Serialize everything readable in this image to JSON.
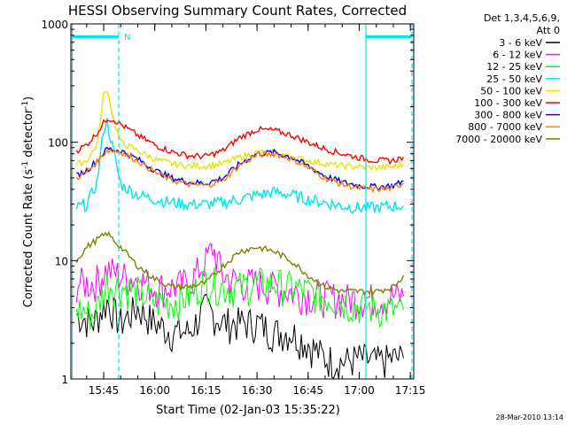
{
  "chart_data": {
    "type": "line",
    "title": "HESSI Observing Summary Count Rates, Corrected",
    "xlabel": "Start Time (02-Jan-03 15:35:22)",
    "ylabel_main": "Corrected Count Rate (s",
    "ylabel_sup1": "-1",
    "ylabel_mid": " detector",
    "ylabel_sup2": "-1",
    "ylabel_end": ")",
    "ylim": [
      1,
      1000
    ],
    "yscale": "log",
    "xlim": [
      "15:35",
      "17:15"
    ],
    "x_ticks": [
      "15:45",
      "16:00",
      "16:15",
      "16:30",
      "16:45",
      "17:00",
      "17:15"
    ],
    "y_ticks": [
      "1",
      "10",
      "100",
      "1000"
    ],
    "legend_header": [
      "Det 1,3,4,5,6,9,",
      "Att 0"
    ],
    "legend_position": "right",
    "marker_label": "N",
    "timestamp": "28-Mar-2010 13:14",
    "accent_color": "#00e5ee",
    "series": [
      {
        "name": "3 - 6 keV",
        "color": "#000000",
        "x": [
          "15:37",
          "15:42",
          "15:46",
          "15:50",
          "15:55",
          "16:00",
          "16:05",
          "16:10",
          "16:15",
          "16:20",
          "16:25",
          "16:30",
          "16:35",
          "16:40",
          "16:45",
          "16:50",
          "16:55",
          "17:00",
          "17:05",
          "17:10",
          "17:13"
        ],
        "values": [
          3.5,
          3,
          4.5,
          3,
          4,
          3,
          2.5,
          2.5,
          4,
          3,
          3,
          3,
          2.5,
          2.5,
          2,
          1.5,
          1.4,
          1.5,
          1.4,
          1.5,
          1.5
        ]
      },
      {
        "name": "6 - 12 keV",
        "color": "#ff00ff",
        "x": [
          "15:37",
          "15:42",
          "15:46",
          "15:50",
          "15:55",
          "16:00",
          "16:05",
          "16:10",
          "16:15",
          "16:17",
          "16:20",
          "16:25",
          "16:30",
          "16:35",
          "16:40",
          "16:45",
          "16:50",
          "16:55",
          "17:00",
          "17:05",
          "17:10",
          "17:13"
        ],
        "values": [
          6.5,
          6.5,
          8.5,
          7.5,
          7,
          6,
          6,
          6.5,
          10,
          13,
          7.5,
          6.5,
          6.5,
          6,
          5.5,
          5.2,
          5,
          4.8,
          4.8,
          4.8,
          5,
          5
        ]
      },
      {
        "name": "12 - 25 keV",
        "color": "#00ff00",
        "x": [
          "15:37",
          "15:42",
          "15:46",
          "15:50",
          "15:55",
          "16:00",
          "16:05",
          "16:10",
          "16:15",
          "16:20",
          "16:25",
          "16:30",
          "16:35",
          "16:40",
          "16:45",
          "16:50",
          "16:55",
          "17:00",
          "17:05",
          "17:10",
          "17:13"
        ],
        "values": [
          4,
          3.5,
          6.5,
          6,
          5.5,
          4.5,
          4.5,
          5,
          7,
          6,
          6,
          6.5,
          6.5,
          6,
          5.5,
          5,
          4.5,
          4.2,
          4,
          3.8,
          3.8
        ]
      },
      {
        "name": "25 - 50 keV",
        "color": "#00e5ee",
        "x": [
          "15:37",
          "15:40",
          "15:43",
          "15:45",
          "15:46",
          "15:48",
          "15:50",
          "15:55",
          "16:00",
          "16:05",
          "16:10",
          "16:15",
          "16:20",
          "16:25",
          "16:30",
          "16:35",
          "16:40",
          "16:45",
          "16:50",
          "16:55",
          "17:00",
          "17:05",
          "17:10",
          "17:13"
        ],
        "values": [
          28,
          30,
          45,
          130,
          150,
          80,
          44,
          36,
          33,
          31,
          30,
          30,
          31,
          33,
          36,
          38,
          36,
          33,
          31,
          29,
          28,
          28,
          29,
          29
        ]
      },
      {
        "name": "50 - 100 keV",
        "color": "#e5e500",
        "x": [
          "15:37",
          "15:40",
          "15:43",
          "15:45",
          "15:46",
          "15:48",
          "15:50",
          "15:55",
          "16:00",
          "16:05",
          "16:10",
          "16:15",
          "16:20",
          "16:25",
          "16:30",
          "16:35",
          "16:40",
          "16:45",
          "16:50",
          "16:55",
          "17:00",
          "17:05",
          "17:10",
          "17:13"
        ],
        "values": [
          65,
          70,
          95,
          250,
          280,
          150,
          100,
          85,
          72,
          66,
          63,
          63,
          66,
          75,
          82,
          82,
          76,
          70,
          66,
          63,
          62,
          61,
          62,
          65
        ]
      },
      {
        "name": "100 - 300 keV",
        "color": "#ff0000",
        "x": [
          "15:37",
          "15:40",
          "15:43",
          "15:46",
          "15:48",
          "15:52",
          "15:56",
          "16:00",
          "16:05",
          "16:10",
          "16:15",
          "16:20",
          "16:25",
          "16:30",
          "16:35",
          "16:40",
          "16:45",
          "16:50",
          "16:55",
          "17:00",
          "17:05",
          "17:10",
          "17:13"
        ],
        "values": [
          85,
          95,
          120,
          160,
          155,
          130,
          110,
          95,
          83,
          77,
          76,
          85,
          110,
          128,
          126,
          115,
          100,
          88,
          80,
          74,
          70,
          70,
          75
        ]
      },
      {
        "name": "300 - 800 keV",
        "color": "#0000ff",
        "x": [
          "15:37",
          "15:40",
          "15:43",
          "15:46",
          "15:50",
          "15:55",
          "16:00",
          "16:05",
          "16:10",
          "16:15",
          "16:20",
          "16:25",
          "16:30",
          "16:35",
          "16:40",
          "16:45",
          "16:50",
          "16:55",
          "17:00",
          "17:05",
          "17:10",
          "17:13"
        ],
        "values": [
          52,
          58,
          70,
          88,
          85,
          72,
          58,
          50,
          46,
          45,
          50,
          66,
          80,
          82,
          75,
          63,
          52,
          46,
          43,
          42,
          43,
          47
        ]
      },
      {
        "name": "800 - 7000 keV",
        "color": "#ff8000",
        "x": [
          "15:37",
          "15:40",
          "15:43",
          "15:46",
          "15:50",
          "15:55",
          "16:00",
          "16:05",
          "16:10",
          "16:15",
          "16:20",
          "16:25",
          "16:30",
          "16:35",
          "16:40",
          "16:45",
          "16:50",
          "16:55",
          "17:00",
          "17:05",
          "17:10",
          "17:13"
        ],
        "values": [
          50,
          56,
          68,
          86,
          83,
          70,
          56,
          48,
          44,
          43,
          48,
          64,
          78,
          80,
          73,
          61,
          50,
          44,
          41,
          40,
          41,
          45
        ]
      },
      {
        "name": "7000 - 20000 keV",
        "color": "#808000",
        "x": [
          "15:37",
          "15:40",
          "15:43",
          "15:46",
          "15:50",
          "15:55",
          "16:00",
          "16:05",
          "16:10",
          "16:15",
          "16:20",
          "16:25",
          "16:30",
          "16:35",
          "16:40",
          "16:45",
          "16:50",
          "16:55",
          "17:00",
          "17:05",
          "17:10",
          "17:13"
        ],
        "values": [
          10,
          13,
          15,
          17,
          13,
          9,
          7,
          6,
          6,
          6.5,
          9,
          12,
          13,
          12,
          10,
          7.5,
          6,
          5.5,
          5.5,
          5.5,
          6,
          7.5
        ]
      }
    ]
  }
}
